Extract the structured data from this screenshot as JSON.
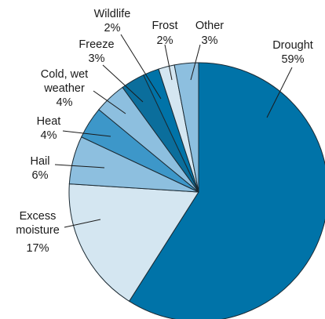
{
  "chart_data": {
    "type": "pie",
    "title": "",
    "slices": [
      {
        "name": "Drought",
        "value": 59,
        "label": "59%",
        "color": "#0073a8"
      },
      {
        "name": "Excess moisture",
        "label_lines": [
          "Excess",
          "moisture"
        ],
        "value": 17,
        "label": "17%",
        "color": "#d4e6f1"
      },
      {
        "name": "Hail",
        "value": 6,
        "label": "6%",
        "color": "#8dbfdf"
      },
      {
        "name": "Heat",
        "value": 4,
        "label": "4%",
        "color": "#3d97c9"
      },
      {
        "name": "Cold, wet weather",
        "label_lines": [
          "Cold, wet",
          "weather"
        ],
        "value": 4,
        "label": "4%",
        "color": "#8dbfdf"
      },
      {
        "name": "Freeze",
        "value": 3,
        "label": "3%",
        "color": "#0b6e9c"
      },
      {
        "name": "Wildlife",
        "value": 2,
        "label": "2%",
        "color": "#0073a8"
      },
      {
        "name": "Frost",
        "value": 2,
        "label": "2%",
        "color": "#d4e6f1"
      },
      {
        "name": "Other",
        "value": 3,
        "label": "3%",
        "color": "#8dbfdf"
      }
    ]
  }
}
